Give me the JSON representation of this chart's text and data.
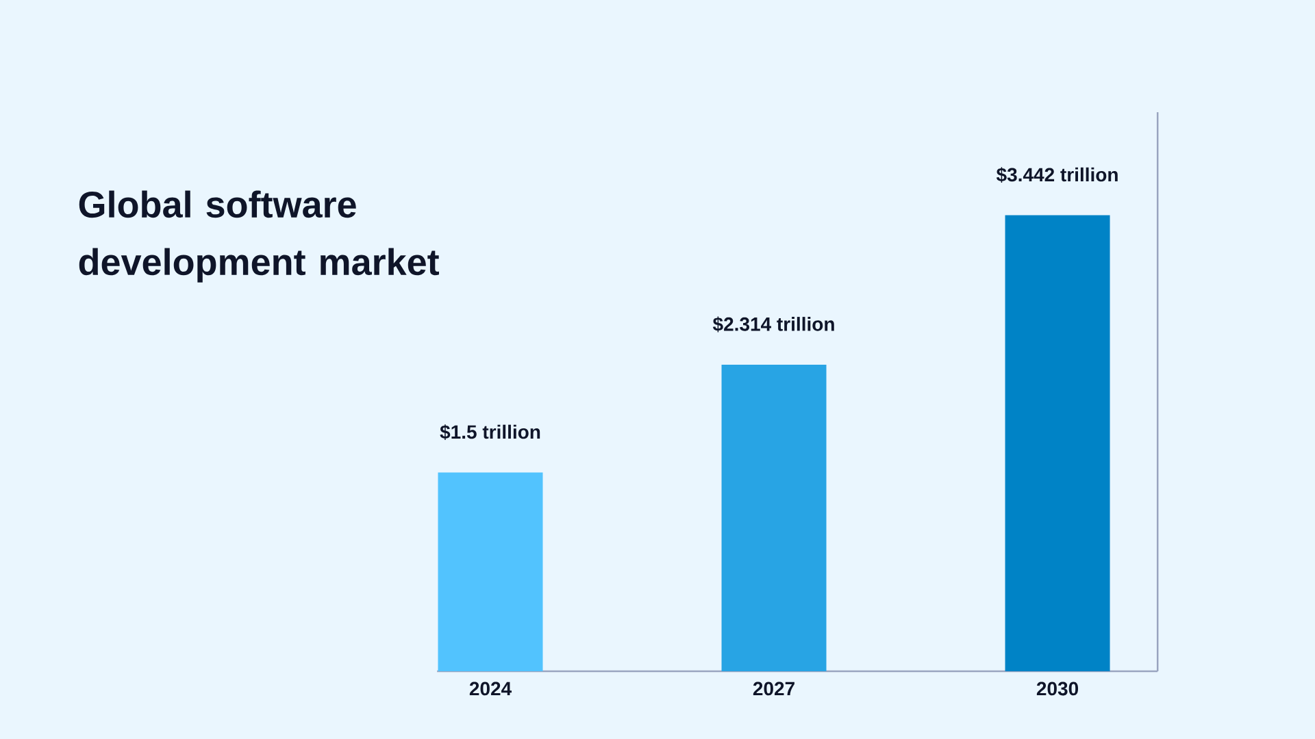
{
  "chart_data": {
    "type": "bar",
    "title": "Global software development market",
    "categories": [
      "2024",
      "2027",
      "2030"
    ],
    "values": [
      1.5,
      2.314,
      3.442
    ],
    "colors": [
      "#52c3fe",
      "#28a4e4",
      "#0083c6"
    ],
    "value_labels": [
      "$1.5 trillion",
      "$2.314 trillion",
      "$3.442 trillion"
    ],
    "tick_labels": "x"
  }
}
